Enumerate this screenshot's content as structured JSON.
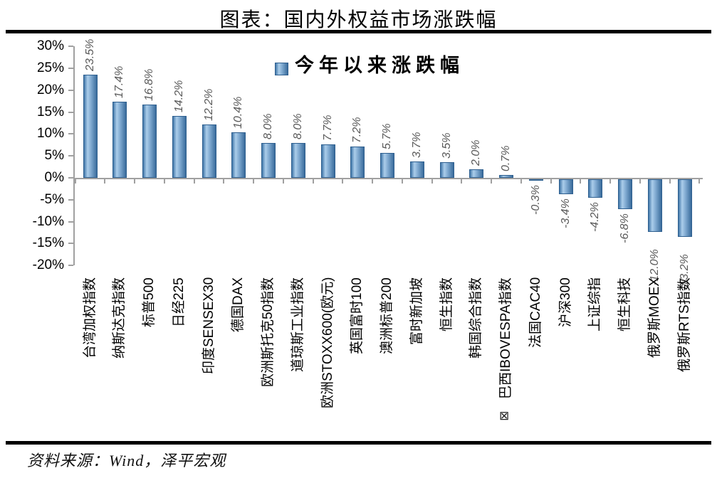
{
  "header": {
    "title": "图表：国内外权益市场涨跌幅"
  },
  "legend": {
    "label": "今年以来涨跌幅"
  },
  "footer": {
    "source_label": "资料来源：Wind，泽平宏观"
  },
  "icons": {
    "broken_image_glyph": "⊠"
  },
  "colors": {
    "bar_edge": "#2e5f8f",
    "bar_dark": "#4076a8",
    "bar_light": "#abcdea",
    "bar_mid": "#7fa9d0",
    "bar_deep": "#396b9b",
    "axis": "#a0a0a0",
    "value_label": "#595959",
    "category_label": "#000000",
    "rule": "#000000"
  },
  "chart_data": {
    "type": "bar",
    "title": "图表：国内外权益市场涨跌幅",
    "legend_entries": [
      "今年以来涨跌幅"
    ],
    "legend_position": "top-center",
    "grid": false,
    "ylim": [
      -20,
      30
    ],
    "ytick_step": 5,
    "ytick_labels": [
      "30%",
      "25%",
      "20%",
      "15%",
      "10%",
      "5%",
      "0%",
      "-5%",
      "-10%",
      "-15%",
      "-20%"
    ],
    "value_label_format": "0.0%",
    "categories": [
      "台湾加权指数",
      "纳斯达克指数",
      "标普500",
      "日经225",
      "印度SENSEX30",
      "德国DAX",
      "欧洲斯托克50指数",
      "道琼斯工业指数",
      "欧洲STOXX600(欧元)",
      "英国富时100",
      "澳洲标普200",
      "富时新加坡",
      "恒生指数",
      "韩国综合指数",
      "巴西IBOVESPA指数",
      "法国CAC40",
      "沪深300",
      "上证综指",
      "恒生科技",
      "俄罗斯MOEX",
      "俄罗斯RTS指数"
    ],
    "values": [
      23.5,
      17.4,
      16.8,
      14.2,
      12.2,
      10.4,
      8.0,
      8.0,
      7.7,
      7.2,
      5.7,
      3.7,
      3.5,
      2.0,
      0.7,
      -0.3,
      -3.4,
      -4.2,
      -6.8,
      -12.0,
      -13.2
    ]
  }
}
